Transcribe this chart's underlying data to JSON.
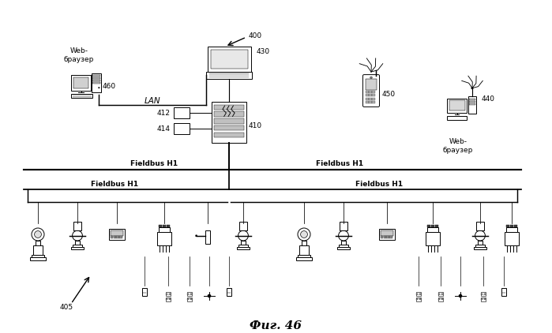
{
  "title": "Фиг. 46",
  "background_color": "#ffffff",
  "fig_width": 6.99,
  "fig_height": 4.22,
  "labels": {
    "web_browser_left": "Web-\nбраузер",
    "web_browser_right": "Web-\nбраузер",
    "lan": "LAN",
    "fieldbus_h1_top_left": "Fieldbus H1",
    "fieldbus_h1_top_right": "Fieldbus H1",
    "fieldbus_h1_bot_left": "Fieldbus H1",
    "fieldbus_h1_bot_right": "Fieldbus H1",
    "num_400": "400",
    "num_430": "430",
    "num_460": "460",
    "num_410": "410",
    "num_412": "412",
    "num_414": "414",
    "num_450": "450",
    "num_440": "440",
    "num_405": "405"
  }
}
